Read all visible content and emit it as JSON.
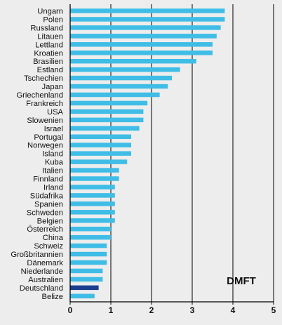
{
  "chart_data": {
    "type": "bar",
    "orientation": "horizontal",
    "annotation": "DMFT",
    "xlim": [
      0,
      5
    ],
    "xticks": [
      0,
      1,
      2,
      3,
      4,
      5
    ],
    "grid": "vertical",
    "categories": [
      "Ungarn",
      "Polen",
      "Russland",
      "Litauen",
      "Lettland",
      "Kroatien",
      "Brasilien",
      "Estland",
      "Tschechien",
      "Japan",
      "Griechenland",
      "Frankreich",
      "USA",
      "Slowenien",
      "Israel",
      "Portugal",
      "Norwegen",
      "Island",
      "Kuba",
      "Italien",
      "Finnland",
      "Irland",
      "Südafrika",
      "Spanien",
      "Schweden",
      "Belgien",
      "Österreich",
      "China",
      "Schweiz",
      "Großbritannien",
      "Dänemark",
      "Niederlande",
      "Australien",
      "Deutschland",
      "Belize"
    ],
    "values": [
      3.8,
      3.8,
      3.7,
      3.6,
      3.5,
      3.5,
      3.1,
      2.7,
      2.5,
      2.4,
      2.2,
      1.9,
      1.8,
      1.8,
      1.7,
      1.5,
      1.5,
      1.5,
      1.4,
      1.2,
      1.2,
      1.1,
      1.1,
      1.1,
      1.1,
      1.1,
      1.0,
      1.0,
      0.9,
      0.9,
      0.9,
      0.8,
      0.8,
      0.7,
      0.6
    ],
    "colors": {
      "bar": "#3fbde6",
      "highlight": "#1b3d8f",
      "highlight_category": "Deutschland",
      "axis": "#000000",
      "grid": "#000000",
      "background": "#ededed"
    }
  }
}
